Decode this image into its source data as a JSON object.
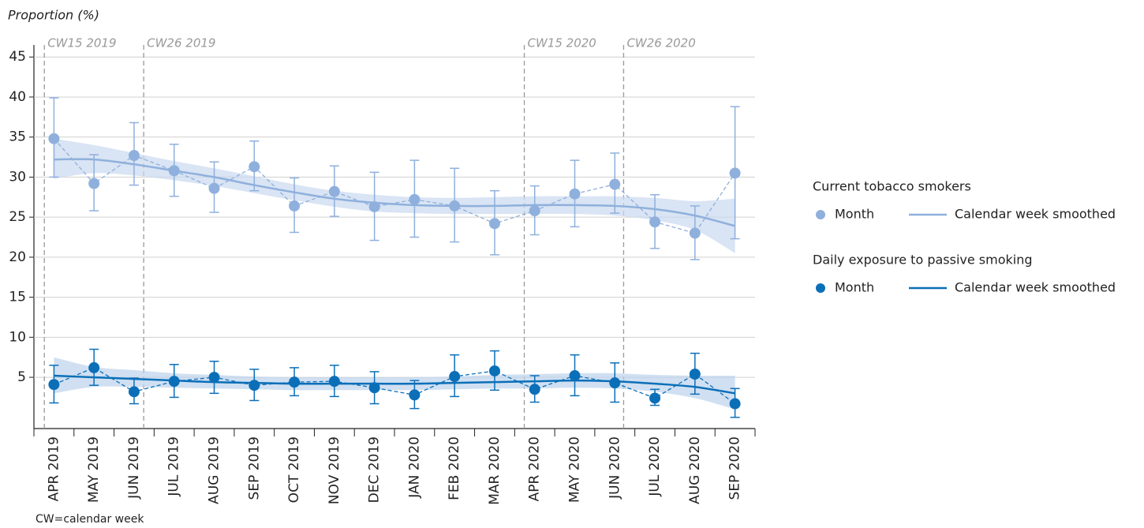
{
  "chart_data": {
    "type": "errorbar_line",
    "y_label": "Proportion (%)",
    "footnote": "CW=calendar week",
    "categories": [
      "APR 2019",
      "MAY 2019",
      "JUN 2019",
      "JUL 2019",
      "AUG 2019",
      "SEP 2019",
      "OCT 2019",
      "NOV 2019",
      "DEC 2019",
      "JAN 2020",
      "FEB 2020",
      "MAR 2020",
      "APR 2020",
      "MAY 2020",
      "JUN 2020",
      "JUL 2020",
      "AUG 2020",
      "SEP 2020"
    ],
    "ylim": [
      -1.4,
      46.5
    ],
    "yticks": [
      5,
      10,
      15,
      20,
      25,
      30,
      35,
      40,
      45
    ],
    "grid": true,
    "annotations": [
      {
        "label": "CW15 2019",
        "x": 0.26
      },
      {
        "label": "CW26 2019",
        "x": 2.74
      },
      {
        "label": "CW15 2020",
        "x": 12.24
      },
      {
        "label": "CW26 2020",
        "x": 14.72
      }
    ],
    "legend_labels": [
      "Month",
      "Calendar week smoothed"
    ],
    "series": [
      {
        "name": "Current tobacco smokers",
        "color": "#8fb0dc",
        "band_color": "#c9d9f0",
        "values": [
          34.8,
          29.2,
          32.7,
          30.8,
          28.6,
          31.3,
          26.4,
          28.2,
          26.3,
          27.2,
          26.4,
          24.2,
          25.8,
          27.9,
          29.1,
          24.4,
          23.0,
          30.5
        ],
        "lower": [
          30.0,
          25.8,
          29.0,
          27.6,
          25.6,
          28.3,
          23.1,
          25.1,
          22.1,
          22.5,
          21.9,
          20.3,
          22.8,
          23.8,
          25.5,
          21.1,
          19.7,
          22.3
        ],
        "upper": [
          39.9,
          32.8,
          36.8,
          34.1,
          31.9,
          34.5,
          29.9,
          31.4,
          30.6,
          32.1,
          31.1,
          28.3,
          28.9,
          32.1,
          33.0,
          27.8,
          26.4,
          38.8
        ],
        "smoothed": [
          32.2,
          32.2,
          31.6,
          30.8,
          30.0,
          29.0,
          28.1,
          27.3,
          26.8,
          26.5,
          26.4,
          26.4,
          26.5,
          26.5,
          26.4,
          26.0,
          25.2,
          23.9
        ],
        "smooth_lower": [
          29.8,
          30.5,
          30.2,
          29.6,
          28.9,
          28.0,
          27.1,
          26.3,
          25.7,
          25.5,
          25.4,
          25.4,
          25.4,
          25.4,
          25.2,
          24.6,
          23.4,
          20.5
        ],
        "smooth_upper": [
          34.8,
          34.0,
          33.0,
          32.0,
          31.1,
          30.1,
          29.1,
          28.3,
          27.8,
          27.5,
          27.4,
          27.5,
          27.6,
          27.6,
          27.6,
          27.4,
          27.0,
          27.3
        ]
      },
      {
        "name": "Daily exposure to passive smoking",
        "color": "#0b6fb8",
        "band_color": "#bcd3ec",
        "values": [
          4.1,
          6.2,
          3.2,
          4.5,
          5.0,
          4.0,
          4.4,
          4.5,
          3.7,
          2.8,
          5.1,
          5.8,
          3.5,
          5.2,
          4.3,
          2.4,
          5.4,
          1.7
        ],
        "lower": [
          1.8,
          4.0,
          1.7,
          2.5,
          3.0,
          2.1,
          2.7,
          2.6,
          1.7,
          1.1,
          2.6,
          3.4,
          1.9,
          2.7,
          1.9,
          1.5,
          2.9,
          0.0
        ],
        "upper": [
          6.5,
          8.5,
          4.9,
          6.6,
          7.0,
          6.0,
          6.2,
          6.5,
          5.7,
          4.6,
          7.8,
          8.3,
          5.2,
          7.8,
          6.8,
          3.5,
          8.0,
          3.6
        ],
        "smoothed": [
          5.2,
          5.0,
          4.8,
          4.6,
          4.4,
          4.3,
          4.2,
          4.2,
          4.2,
          4.2,
          4.3,
          4.4,
          4.5,
          4.6,
          4.5,
          4.2,
          3.8,
          3.0
        ],
        "smooth_lower": [
          3.0,
          3.8,
          3.8,
          3.7,
          3.6,
          3.5,
          3.4,
          3.4,
          3.4,
          3.4,
          3.5,
          3.6,
          3.6,
          3.7,
          3.6,
          3.2,
          2.4,
          1.0
        ],
        "smooth_upper": [
          7.5,
          6.3,
          5.9,
          5.5,
          5.3,
          5.1,
          5.0,
          5.0,
          5.0,
          5.0,
          5.1,
          5.3,
          5.4,
          5.5,
          5.5,
          5.3,
          5.2,
          5.2
        ]
      }
    ]
  }
}
